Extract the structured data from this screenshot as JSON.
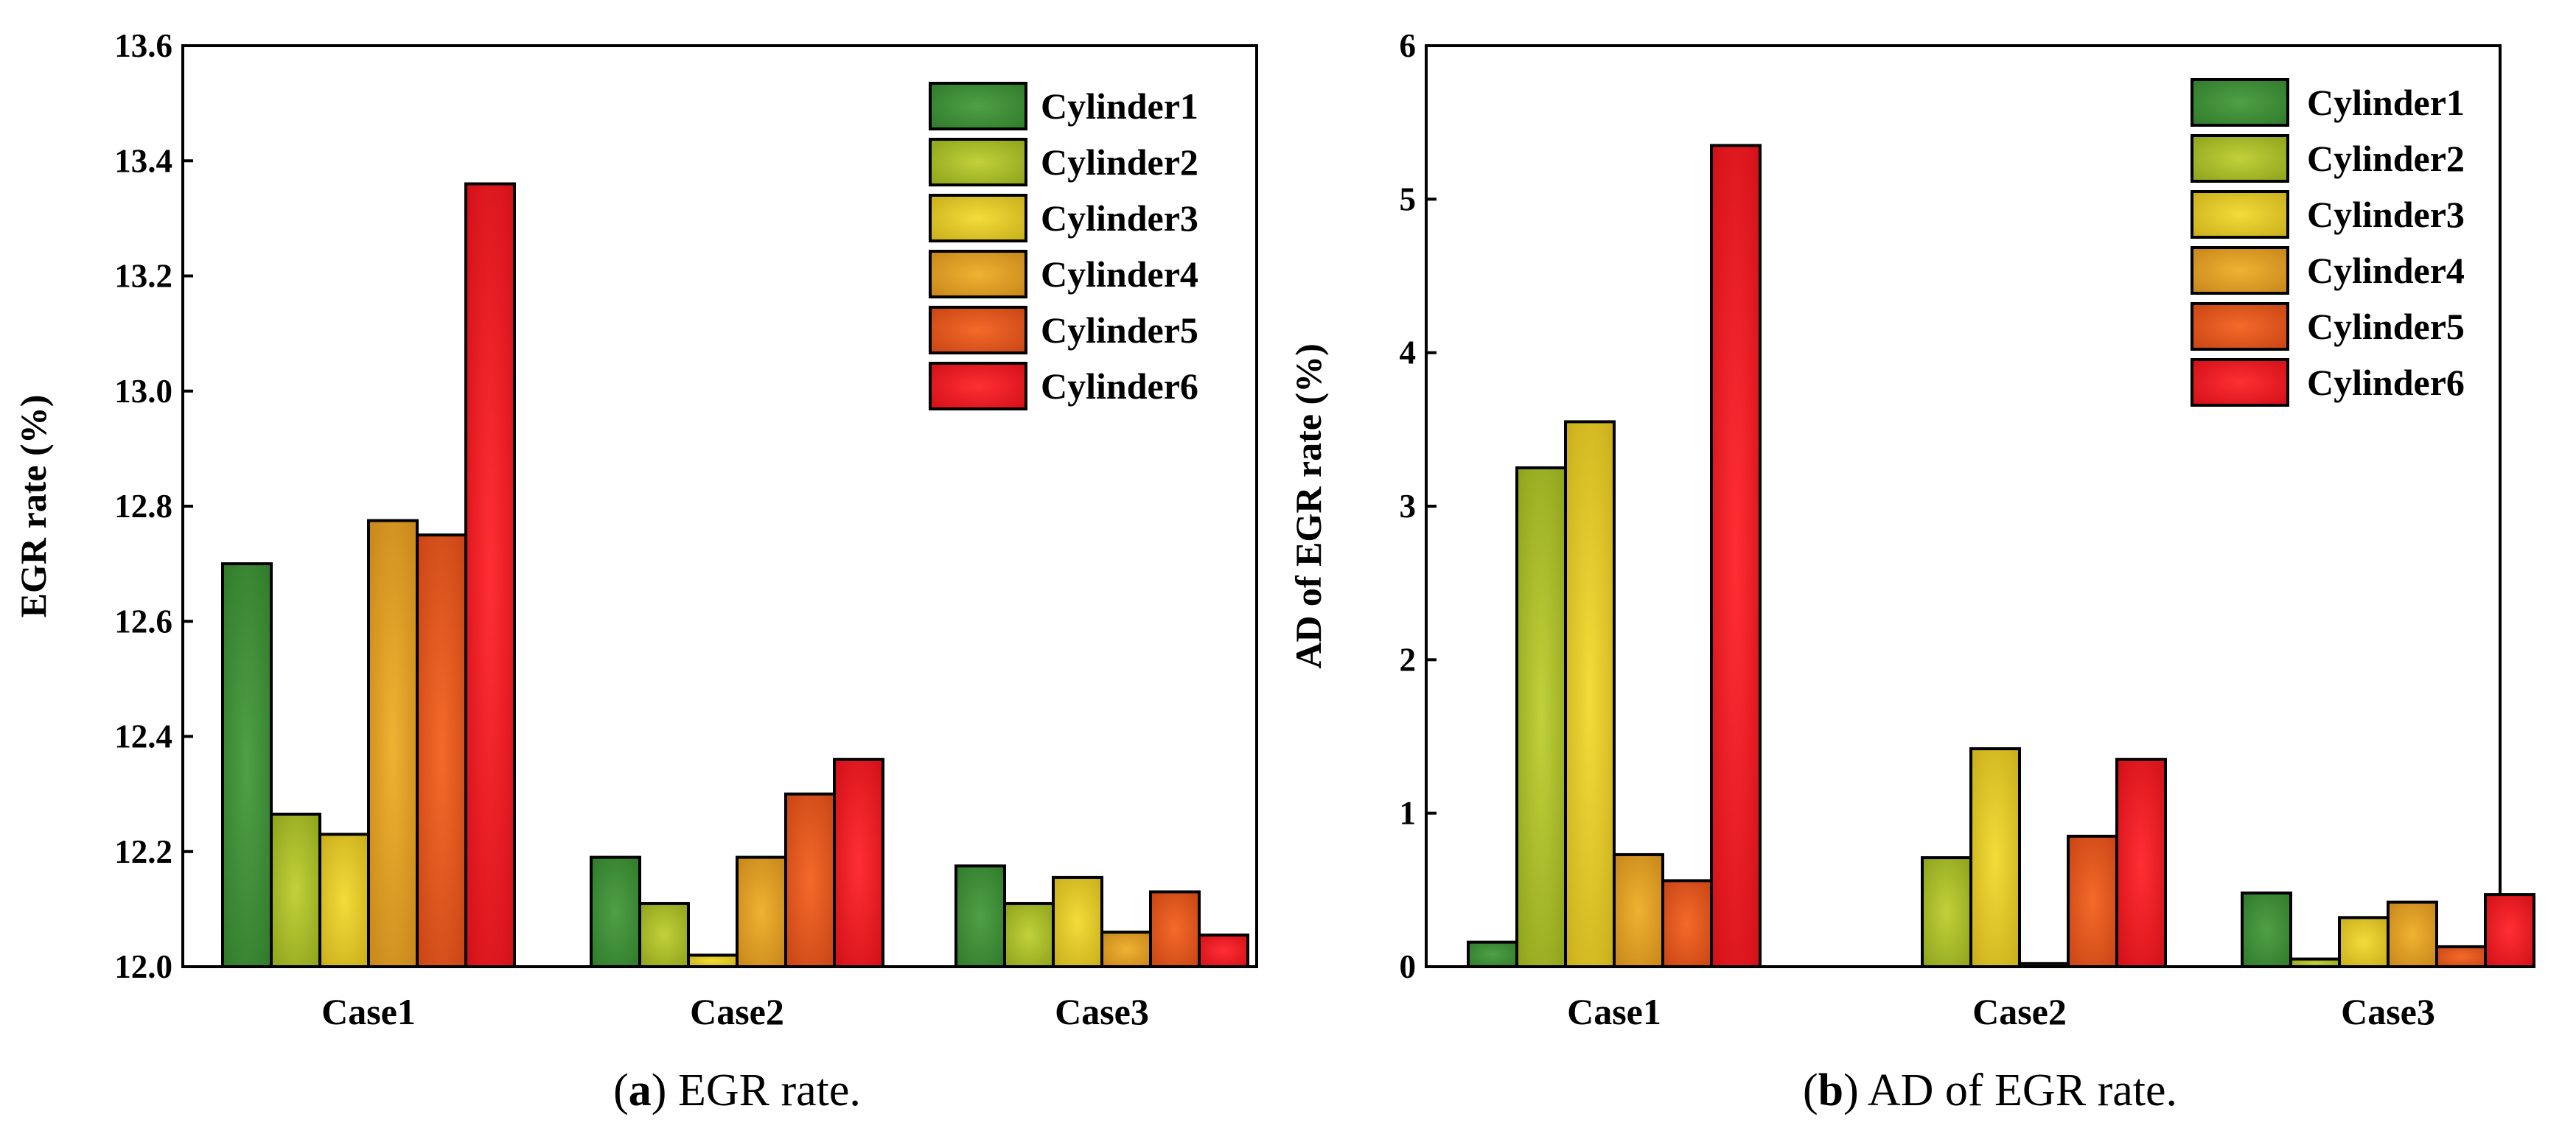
{
  "colors": {
    "Cylinder1": {
      "light": "#4fa046",
      "dark": "#2f7a2a"
    },
    "Cylinder2": {
      "light": "#c2d13a",
      "dark": "#8da21c"
    },
    "Cylinder3": {
      "light": "#f3dc3a",
      "dark": "#c8ad1a"
    },
    "Cylinder4": {
      "light": "#f0b232",
      "dark": "#c6861a"
    },
    "Cylinder5": {
      "light": "#f46a2a",
      "dark": "#c84414"
    },
    "Cylinder6": {
      "light": "#ff2f33",
      "dark": "#d10f17"
    }
  },
  "chart_data": [
    {
      "panel": "a",
      "type": "bar",
      "title": "",
      "caption_letter": "a",
      "caption_text": ") EGR rate.",
      "xlabel": "",
      "ylabel": "EGR rate (%)",
      "ylim": [
        12.0,
        13.6
      ],
      "yticks": [
        "12.0",
        "12.2",
        "12.4",
        "12.6",
        "12.8",
        "13.0",
        "13.2",
        "13.4",
        "13.6"
      ],
      "categories": [
        "Case1",
        "Case2",
        "Case3"
      ],
      "legend_position": "top-right",
      "series": [
        {
          "name": "Cylinder1",
          "values": [
            12.7,
            12.19,
            12.175
          ]
        },
        {
          "name": "Cylinder2",
          "values": [
            12.265,
            12.11,
            12.11
          ]
        },
        {
          "name": "Cylinder3",
          "values": [
            12.23,
            12.02,
            12.155
          ]
        },
        {
          "name": "Cylinder4",
          "values": [
            12.775,
            12.19,
            12.06
          ]
        },
        {
          "name": "Cylinder5",
          "values": [
            12.75,
            12.3,
            12.13
          ]
        },
        {
          "name": "Cylinder6",
          "values": [
            13.36,
            12.36,
            12.055
          ]
        }
      ]
    },
    {
      "panel": "b",
      "type": "bar",
      "title": "",
      "caption_letter": "b",
      "caption_text": ") AD of EGR rate.",
      "xlabel": "",
      "ylabel": "AD of EGR rate (%)",
      "ylim": [
        0,
        6
      ],
      "yticks": [
        "0",
        "1",
        "2",
        "3",
        "4",
        "5",
        "6"
      ],
      "categories": [
        "Case1",
        "Case2",
        "Case3"
      ],
      "legend_position": "top-right",
      "series": [
        {
          "name": "Cylinder1",
          "values": [
            0.16,
            0.0,
            0.48
          ]
        },
        {
          "name": "Cylinder2",
          "values": [
            3.25,
            0.71,
            0.05
          ]
        },
        {
          "name": "Cylinder3",
          "values": [
            3.55,
            1.42,
            0.32
          ]
        },
        {
          "name": "Cylinder4",
          "values": [
            0.73,
            0.02,
            0.42
          ]
        },
        {
          "name": "Cylinder5",
          "values": [
            0.56,
            0.85,
            0.13
          ]
        },
        {
          "name": "Cylinder6",
          "values": [
            5.35,
            1.35,
            0.47
          ]
        }
      ]
    }
  ]
}
